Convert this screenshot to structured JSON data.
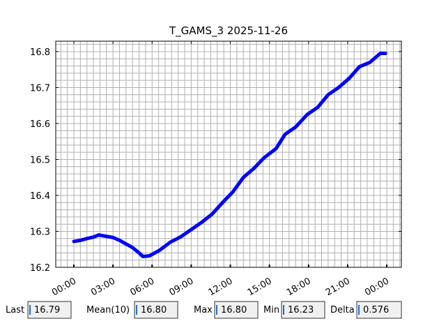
{
  "chart_data": {
    "type": "line",
    "title": "T_GAMS_3 2025-11-26",
    "x": [
      0,
      0.5,
      1,
      1.5,
      1.9,
      2.5,
      3,
      3.5,
      4,
      4.5,
      5,
      5.3,
      5.8,
      6.6,
      7.4,
      8.2,
      9,
      9.8,
      10.6,
      11.4,
      12.2,
      13,
      13.8,
      14.6,
      15.5,
      16.2,
      17,
      17.9,
      18.7,
      19.5,
      20.3,
      21.1,
      21.9,
      22.7,
      23.5,
      23.9
    ],
    "series": [
      {
        "name": "T_GAMS_3",
        "color": "#0000ff",
        "values": [
          16.272,
          16.275,
          16.28,
          16.284,
          16.29,
          16.286,
          16.283,
          16.275,
          16.265,
          16.255,
          16.24,
          16.23,
          16.232,
          16.248,
          16.27,
          16.285,
          16.305,
          16.325,
          16.348,
          16.38,
          16.41,
          16.45,
          16.475,
          16.505,
          16.53,
          16.57,
          16.59,
          16.625,
          16.645,
          16.68,
          16.7,
          16.725,
          16.758,
          16.77,
          16.795,
          16.795
        ]
      }
    ],
    "xlim": [
      -1.39,
      25.12
    ],
    "ylim": [
      16.2,
      16.829
    ],
    "xticks": [
      {
        "value": 0,
        "label": "00:00"
      },
      {
        "value": 3,
        "label": "03:00"
      },
      {
        "value": 6,
        "label": "06:00"
      },
      {
        "value": 9,
        "label": "09:00"
      },
      {
        "value": 12,
        "label": "12:00"
      },
      {
        "value": 15,
        "label": "15:00"
      },
      {
        "value": 18,
        "label": "18:00"
      },
      {
        "value": 21,
        "label": "21:00"
      },
      {
        "value": 24,
        "label": "00:00"
      }
    ],
    "yticks": [
      16.2,
      16.3,
      16.4,
      16.5,
      16.6,
      16.7,
      16.8
    ],
    "grid": true,
    "minor_grid": {
      "x": 0.5,
      "y": 0.02
    }
  },
  "stats": [
    {
      "label": "Last",
      "value": "16.79"
    },
    {
      "label": "Mean(10)",
      "value": "16.80"
    },
    {
      "label": "Max",
      "value": "16.80"
    },
    {
      "label": "Min",
      "value": "16.23"
    },
    {
      "label": "Delta",
      "value": "0.576"
    }
  ]
}
